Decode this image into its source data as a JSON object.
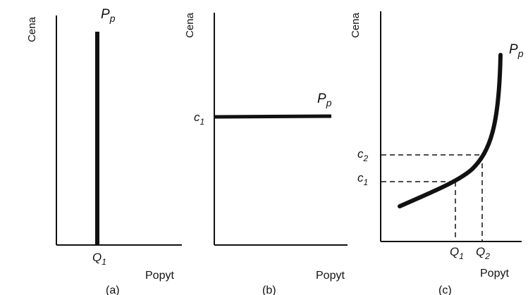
{
  "panels": [
    {
      "caption": "(a)",
      "y_axis_label": "Cena",
      "x_axis_label": "Popyt",
      "curve_label": {
        "main": "P",
        "sub": "p"
      },
      "x_tick": {
        "main": "Q",
        "sub": "1"
      }
    },
    {
      "caption": "(b)",
      "y_axis_label": "Cena",
      "x_axis_label": "Popyt",
      "curve_label": {
        "main": "P",
        "sub": "p"
      },
      "y_tick": {
        "main": "c",
        "sub": "1"
      }
    },
    {
      "caption": "(c)",
      "y_axis_label": "Cena",
      "x_axis_label": "Popyt",
      "curve_label": {
        "main": "P",
        "sub": "p"
      },
      "y_ticks": [
        {
          "main": "c",
          "sub": "2"
        },
        {
          "main": "c",
          "sub": "1"
        }
      ],
      "x_ticks": [
        {
          "main": "Q",
          "sub": "1"
        },
        {
          "main": "Q",
          "sub": "2"
        }
      ]
    }
  ]
}
